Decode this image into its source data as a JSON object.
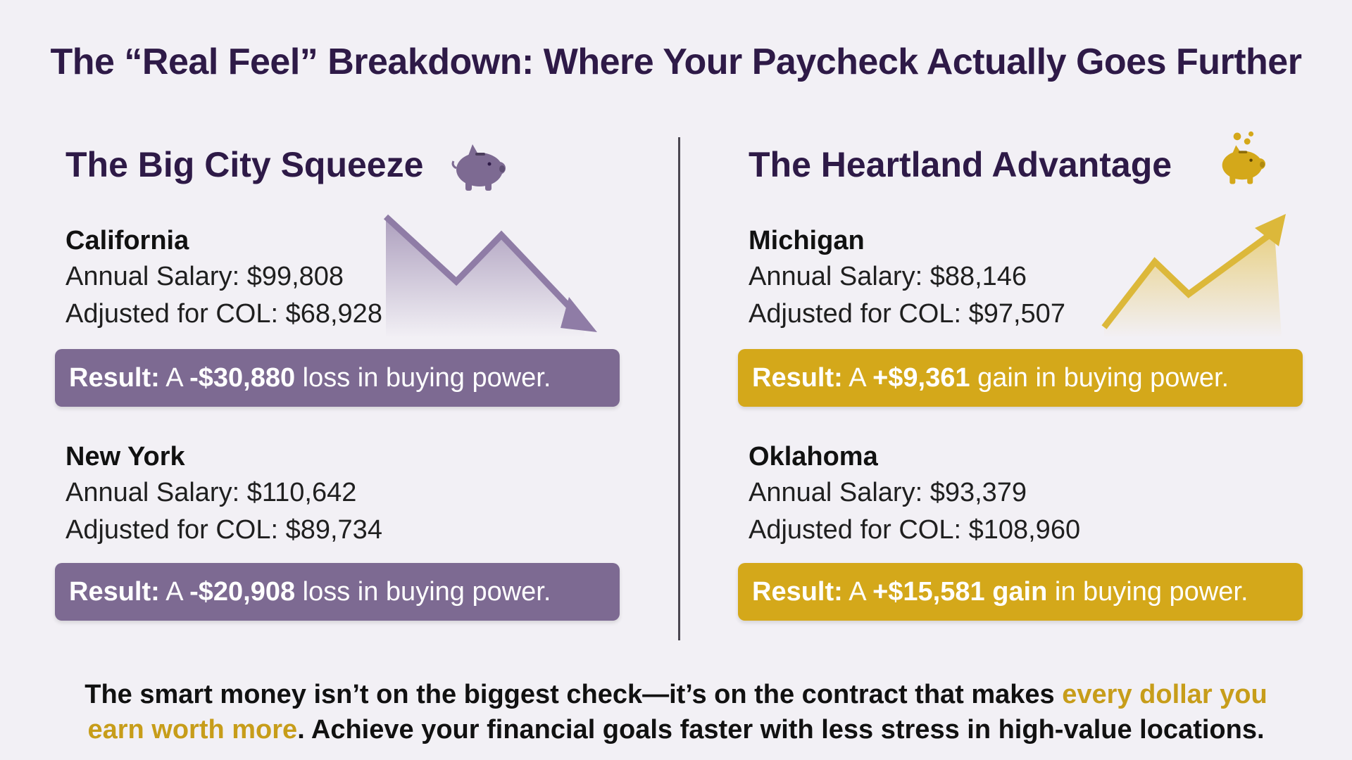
{
  "headline": "The “Real Feel” Breakdown: Where Your Paycheck Actually Goes Further",
  "left": {
    "title": "The Big City Squeeze",
    "icon": "piggy-bank-icon",
    "trend_icon": "downward-trend-arrow-icon",
    "accent_color": "#7d6a92",
    "states": [
      {
        "name": "California",
        "salary_label": "Annual Salary: $99,808",
        "adjusted_label": "Adjusted for COL: $68,928",
        "result_prefix": "Result:",
        "result_a": "A",
        "result_amount": "-$30,880",
        "result_rest": "loss in buying power."
      },
      {
        "name": "New York",
        "salary_label": "Annual Salary: $110,642",
        "adjusted_label": "Adjusted for COL: $89,734",
        "result_prefix": "Result:",
        "result_a": "A",
        "result_amount": "-$20,908",
        "result_rest": "loss in buying power."
      }
    ]
  },
  "right": {
    "title": "The Heartland Advantage",
    "icon": "piggy-bank-coins-icon",
    "trend_icon": "upward-trend-arrow-icon",
    "accent_color": "#d4a81a",
    "states": [
      {
        "name": "Michigan",
        "salary_label": "Annual Salary: $88,146",
        "adjusted_label": "Adjusted for COL: $97,507",
        "result_prefix": "Result:",
        "result_a": "A",
        "result_amount": "+$9,361",
        "result_rest": "gain in buying power."
      },
      {
        "name": "Oklahoma",
        "salary_label": "Annual Salary: $93,379",
        "adjusted_label": "Adjusted for COL: $108,960",
        "result_prefix": "Result:",
        "result_a": "A",
        "result_amount": "+$15,581 gain",
        "result_rest": "in buying power."
      }
    ]
  },
  "footer": {
    "line1_text": "The smart money isn’t on the biggest check—it’s on the contract that makes ",
    "line1_highlight": "every dollar you",
    "line2_highlight": "earn worth more",
    "line2_text": ". Achieve your financial goals faster with less stress in high-value locations.",
    "highlight_color": "#c79d1a"
  }
}
